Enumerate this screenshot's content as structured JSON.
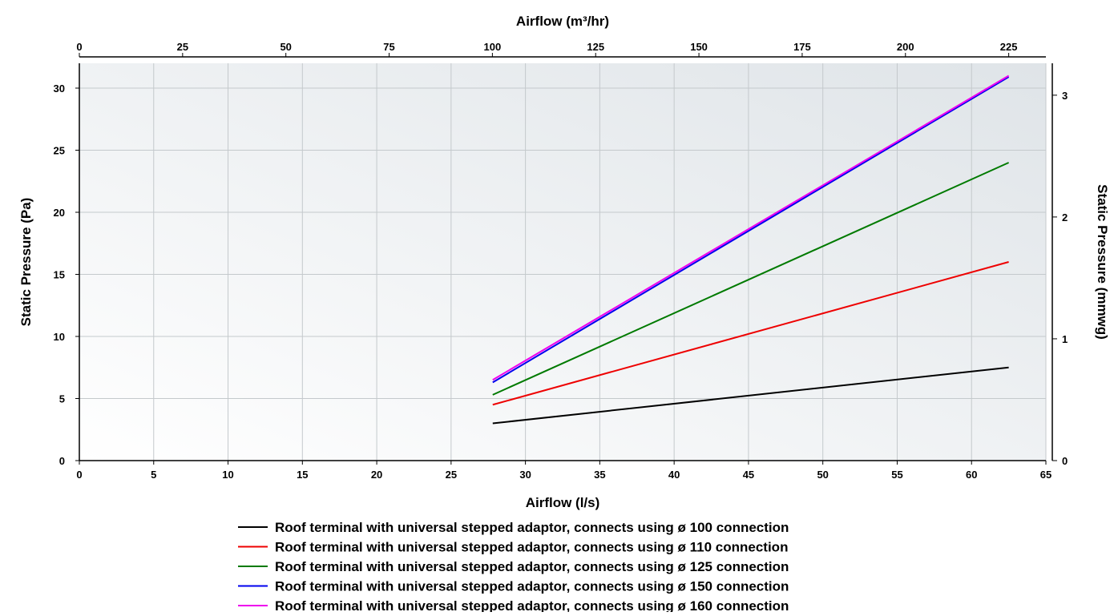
{
  "chart_data": {
    "type": "line",
    "title": "",
    "xlabel": "Airflow (l/s)",
    "x2label": "Airflow (m³/hr)",
    "ylabel": "Static Pressure (Pa)",
    "y2label": "Static Pressure (mmwg)",
    "xlim": [
      0,
      65
    ],
    "x2lim": [
      0,
      234
    ],
    "ylim": [
      0,
      32
    ],
    "y2lim": [
      0,
      3.262
    ],
    "x_ticks": [
      0,
      5,
      10,
      15,
      20,
      25,
      30,
      35,
      40,
      45,
      50,
      55,
      60,
      65
    ],
    "x2_ticks": [
      0,
      25,
      50,
      75,
      100,
      125,
      150,
      175,
      200,
      225
    ],
    "y_ticks": [
      0,
      5,
      10,
      15,
      20,
      25,
      30
    ],
    "y2_ticks": [
      0,
      1,
      2,
      3
    ],
    "grid": true,
    "legend_position": "bottom",
    "series": [
      {
        "name": "Roof terminal with universal stepped adaptor, connects using ø 100 connection",
        "color": "#000000",
        "x": [
          27.8,
          62.5
        ],
        "y": [
          3.0,
          7.5
        ]
      },
      {
        "name": "Roof terminal with universal stepped adaptor, connects using ø 110 connection",
        "color": "#ee0000",
        "x": [
          27.8,
          62.5
        ],
        "y": [
          4.5,
          16.0
        ]
      },
      {
        "name": "Roof terminal with universal stepped adaptor, connects using ø 125 connection",
        "color": "#007a00",
        "x": [
          27.8,
          62.5
        ],
        "y": [
          5.3,
          24.0
        ]
      },
      {
        "name": "Roof terminal with universal stepped adaptor, connects using ø 150 connection",
        "color": "#0000ee",
        "x": [
          27.8,
          62.5
        ],
        "y": [
          6.3,
          30.9
        ]
      },
      {
        "name": "Roof terminal with universal stepped adaptor, connects using ø 160 connection",
        "color": "#ee00ee",
        "x": [
          27.8,
          62.5
        ],
        "y": [
          6.5,
          31.0
        ]
      }
    ]
  }
}
